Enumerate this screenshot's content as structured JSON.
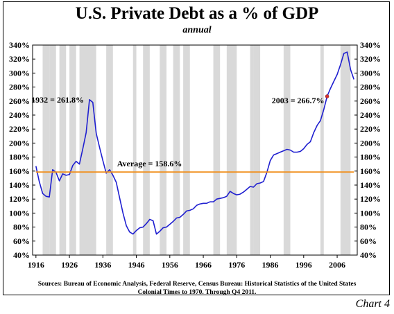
{
  "page": {
    "title": "U.S. Private Debt as a % of GDP",
    "subtitle": "annual",
    "source_line1": "Sources: Bureau of Economic Analysis, Federal Reserve, Census Bureau: Historical Statistics of the United States",
    "source_line2": "Colonial Times to 1970.   Through Q4 2011.",
    "chart_number": "Chart 4"
  },
  "chart_data": {
    "type": "line",
    "title": "U.S. Private Debt as a % of GDP",
    "subtitle": "annual",
    "xlabel": "",
    "ylabel": "",
    "xlim": [
      1915,
      2012
    ],
    "ylim": [
      40,
      340
    ],
    "x_ticks": [
      1916,
      1926,
      1936,
      1946,
      1956,
      1966,
      1976,
      1986,
      1996,
      2006
    ],
    "y_ticks": [
      40,
      60,
      80,
      100,
      120,
      140,
      160,
      180,
      200,
      220,
      240,
      260,
      280,
      300,
      320,
      340
    ],
    "y_tick_format": "{v}%",
    "grid": false,
    "series": [
      {
        "color": "#1f1fd0",
        "x": [
          1916,
          1917,
          1918,
          1919,
          1920,
          1921,
          1922,
          1923,
          1924,
          1925,
          1926,
          1927,
          1928,
          1929,
          1930,
          1931,
          1932,
          1933,
          1934,
          1935,
          1936,
          1937,
          1938,
          1939,
          1940,
          1941,
          1942,
          1943,
          1944,
          1945,
          1946,
          1947,
          1948,
          1949,
          1950,
          1951,
          1952,
          1953,
          1954,
          1955,
          1956,
          1957,
          1958,
          1959,
          1960,
          1961,
          1962,
          1963,
          1964,
          1965,
          1966,
          1967,
          1968,
          1969,
          1970,
          1971,
          1972,
          1973,
          1974,
          1975,
          1976,
          1977,
          1978,
          1979,
          1980,
          1981,
          1982,
          1983,
          1984,
          1985,
          1986,
          1987,
          1988,
          1989,
          1990,
          1991,
          1992,
          1993,
          1994,
          1995,
          1996,
          1997,
          1998,
          1999,
          2000,
          2001,
          2002,
          2003,
          2004,
          2005,
          2006,
          2007,
          2008,
          2009,
          2010,
          2011
        ],
        "values": [
          167,
          145,
          128,
          124,
          123,
          162,
          158,
          146,
          156,
          154,
          155,
          168,
          174,
          170,
          192,
          215,
          262,
          258,
          214,
          194,
          175,
          157,
          162,
          154,
          144,
          122,
          100,
          82,
          73,
          70,
          75,
          79,
          80,
          85,
          91,
          89,
          70,
          74,
          79,
          80,
          84,
          88,
          93,
          94,
          98,
          103,
          104,
          106,
          111,
          113,
          114,
          114,
          116,
          116,
          120,
          121,
          122,
          124,
          131,
          128,
          126,
          127,
          130,
          134,
          138,
          137,
          142,
          143,
          145,
          158,
          175,
          183,
          185,
          187,
          189,
          191,
          190,
          187,
          187,
          188,
          192,
          198,
          202,
          215,
          225,
          232,
          248,
          266.7,
          278,
          288,
          298,
          312,
          328,
          330,
          305,
          291
        ]
      },
      {
        "name": "Average",
        "color": "#f0901e",
        "x": [
          1916,
          2011
        ],
        "values": [
          158.6,
          158.6
        ]
      }
    ],
    "recession_bands": [
      [
        1918,
        1919
      ],
      [
        1920,
        1921
      ],
      [
        1923,
        1924
      ],
      [
        1926,
        1927
      ],
      [
        1929,
        1933
      ],
      [
        1937,
        1938
      ],
      [
        1945,
        1945
      ],
      [
        1948,
        1949
      ],
      [
        1953,
        1954
      ],
      [
        1957,
        1958
      ],
      [
        1960,
        1961
      ],
      [
        1969,
        1970
      ],
      [
        1973,
        1975
      ],
      [
        1980,
        1980
      ],
      [
        1981,
        1982
      ],
      [
        1990,
        1991
      ],
      [
        2001,
        2001
      ],
      [
        2007,
        2009
      ]
    ],
    "annotations": [
      {
        "text": "1932 = 261.8%",
        "x": 1932,
        "y": 261.8,
        "anchor": "end"
      },
      {
        "text": "Average = 158.6%",
        "x": 1939,
        "y": 158.6,
        "anchor": "start"
      },
      {
        "text": "2003 = 266.7%",
        "x": 2003,
        "y": 266.7,
        "anchor": "end",
        "marker": true
      }
    ]
  }
}
